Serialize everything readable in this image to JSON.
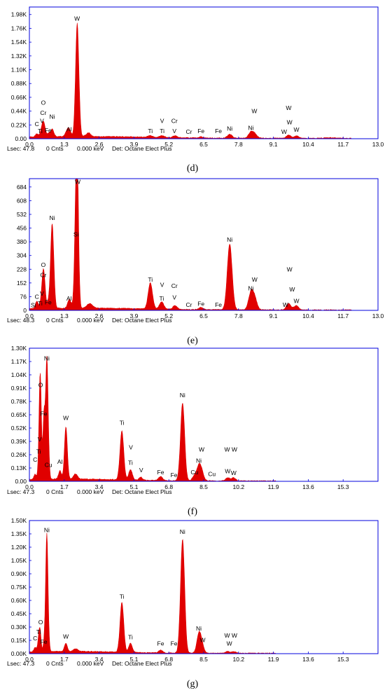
{
  "colors": {
    "spectrum": "#e00000",
    "frame": "#0000dd",
    "text": "#000000"
  },
  "chart_data": [
    {
      "type": "area",
      "panel_label": "(d)",
      "yticks": [
        "0.00",
        "0.22K",
        "0.44K",
        "0.66K",
        "0.88K",
        "1.10K",
        "1.32K",
        "1.54K",
        "1.76K",
        "1.98K"
      ],
      "ylim": [
        0,
        2.1
      ],
      "xticks": [
        "0.0",
        "1.3",
        "2.6",
        "3.9",
        "5.2",
        "6.5",
        "7.8",
        "9.1",
        "10.4",
        "11.7",
        "13.0"
      ],
      "xlim": [
        0,
        13.0
      ],
      "footer": {
        "lsec": "Lsec: 47.8",
        "cnts": "0 Cnts",
        "kev": "0.000 keV",
        "det": "Det: Octane Elect Plus"
      },
      "peaks": [
        {
          "x": 0.28,
          "y": 0.05,
          "w": 0.05
        },
        {
          "x": 0.45,
          "y": 0.1,
          "w": 0.05
        },
        {
          "x": 0.52,
          "y": 0.16,
          "w": 0.05
        },
        {
          "x": 0.57,
          "y": 0.08,
          "w": 0.05
        },
        {
          "x": 0.85,
          "y": 0.12,
          "w": 0.06
        },
        {
          "x": 0.71,
          "y": 0.05,
          "w": 0.05
        },
        {
          "x": 1.49,
          "y": 0.1,
          "w": 0.06
        },
        {
          "x": 1.4,
          "y": 0.08,
          "w": 0.06
        },
        {
          "x": 1.78,
          "y": 1.76,
          "w": 0.06
        },
        {
          "x": 1.85,
          "y": 0.12,
          "w": 0.05
        },
        {
          "x": 2.2,
          "y": 0.06,
          "w": 0.08
        },
        {
          "x": 4.51,
          "y": 0.03,
          "w": 0.08
        },
        {
          "x": 4.95,
          "y": 0.03,
          "w": 0.08
        },
        {
          "x": 5.43,
          "y": 0.03,
          "w": 0.08
        },
        {
          "x": 6.4,
          "y": 0.02,
          "w": 0.08
        },
        {
          "x": 7.47,
          "y": 0.06,
          "w": 0.09
        },
        {
          "x": 8.26,
          "y": 0.09,
          "w": 0.09
        },
        {
          "x": 8.4,
          "y": 0.06,
          "w": 0.09
        },
        {
          "x": 9.67,
          "y": 0.05,
          "w": 0.09
        },
        {
          "x": 9.96,
          "y": 0.04,
          "w": 0.08
        },
        {
          "x": 11.2,
          "y": 0.01,
          "w": 0.2
        }
      ],
      "labels": [
        {
          "text": "C",
          "x": 0.28,
          "y": 0.2
        },
        {
          "text": "Ti",
          "x": 0.4,
          "y": 0.09
        },
        {
          "text": "V",
          "x": 0.47,
          "y": 0.25
        },
        {
          "text": "O",
          "x": 0.52,
          "y": 0.54
        },
        {
          "text": "Cr",
          "x": 0.52,
          "y": 0.38
        },
        {
          "text": "Ni",
          "x": 0.85,
          "y": 0.32
        },
        {
          "text": "Fe",
          "x": 0.7,
          "y": 0.1
        },
        {
          "text": "Al",
          "x": 1.48,
          "y": 0.12
        },
        {
          "text": "W",
          "x": 1.78,
          "y": 1.88
        },
        {
          "text": "Ti",
          "x": 4.51,
          "y": 0.09
        },
        {
          "text": "V",
          "x": 4.95,
          "y": 0.25
        },
        {
          "text": "Ti",
          "x": 4.95,
          "y": 0.09
        },
        {
          "text": "Cr",
          "x": 5.41,
          "y": 0.25
        },
        {
          "text": "V",
          "x": 5.41,
          "y": 0.09
        },
        {
          "text": "Cr",
          "x": 5.95,
          "y": 0.08
        },
        {
          "text": "Fe",
          "x": 6.4,
          "y": 0.09
        },
        {
          "text": "Fe",
          "x": 7.05,
          "y": 0.09
        },
        {
          "text": "Ni",
          "x": 7.47,
          "y": 0.13
        },
        {
          "text": "W",
          "x": 8.39,
          "y": 0.41
        },
        {
          "text": "Ni",
          "x": 8.26,
          "y": 0.14
        },
        {
          "text": "W",
          "x": 9.67,
          "y": 0.46
        },
        {
          "text": "W",
          "x": 9.7,
          "y": 0.23
        },
        {
          "text": "W",
          "x": 9.5,
          "y": 0.08
        },
        {
          "text": "W",
          "x": 9.96,
          "y": 0.11
        }
      ]
    },
    {
      "type": "area",
      "panel_label": "(e)",
      "yticks": [
        "0",
        "76",
        "152",
        "228",
        "304",
        "380",
        "456",
        "532",
        "608",
        "684"
      ],
      "ylim": [
        0,
        730
      ],
      "xticks": [
        "0.0",
        "1.3",
        "2.6",
        "3.9",
        "5.2",
        "6.5",
        "7.8",
        "9.1",
        "10.4",
        "11.7",
        "13.0"
      ],
      "xlim": [
        0,
        13.0
      ],
      "footer": {
        "lsec": "Lsec: 48.3",
        "cnts": "0 Cnts",
        "kev": "0.000 keV",
        "det": "Det: Octane Elect Plus"
      },
      "peaks": [
        {
          "x": 0.28,
          "y": 40,
          "w": 0.05
        },
        {
          "x": 0.45,
          "y": 45,
          "w": 0.05
        },
        {
          "x": 0.52,
          "y": 165,
          "w": 0.05
        },
        {
          "x": 0.57,
          "y": 60,
          "w": 0.05
        },
        {
          "x": 0.71,
          "y": 30,
          "w": 0.05
        },
        {
          "x": 0.85,
          "y": 470,
          "w": 0.06
        },
        {
          "x": 1.49,
          "y": 50,
          "w": 0.06
        },
        {
          "x": 1.74,
          "y": 380,
          "w": 0.06
        },
        {
          "x": 1.78,
          "y": 680,
          "w": 0.05
        },
        {
          "x": 2.25,
          "y": 25,
          "w": 0.1
        },
        {
          "x": 4.51,
          "y": 145,
          "w": 0.08
        },
        {
          "x": 4.93,
          "y": 40,
          "w": 0.08
        },
        {
          "x": 5.43,
          "y": 20,
          "w": 0.08
        },
        {
          "x": 6.4,
          "y": 12,
          "w": 0.08
        },
        {
          "x": 7.47,
          "y": 365,
          "w": 0.09
        },
        {
          "x": 8.26,
          "y": 90,
          "w": 0.09
        },
        {
          "x": 8.4,
          "y": 60,
          "w": 0.09
        },
        {
          "x": 9.67,
          "y": 35,
          "w": 0.09
        },
        {
          "x": 9.96,
          "y": 25,
          "w": 0.08
        }
      ],
      "labels": [
        {
          "text": "Si",
          "x": 0.15,
          "y": 18
        },
        {
          "text": "C",
          "x": 0.28,
          "y": 65
        },
        {
          "text": "Ti",
          "x": 0.4,
          "y": 28
        },
        {
          "text": "V",
          "x": 0.47,
          "y": 82
        },
        {
          "text": "O",
          "x": 0.52,
          "y": 240
        },
        {
          "text": "Cr",
          "x": 0.52,
          "y": 185
        },
        {
          "text": "Fe",
          "x": 0.7,
          "y": 33
        },
        {
          "text": "Ni",
          "x": 0.85,
          "y": 500
        },
        {
          "text": "Al",
          "x": 1.48,
          "y": 55
        },
        {
          "text": "W",
          "x": 1.8,
          "y": 700
        },
        {
          "text": "Si",
          "x": 1.74,
          "y": 410
        },
        {
          "text": "Ti",
          "x": 4.51,
          "y": 160
        },
        {
          "text": "V",
          "x": 4.95,
          "y": 130
        },
        {
          "text": "Ti",
          "x": 4.93,
          "y": 55
        },
        {
          "text": "Cr",
          "x": 5.41,
          "y": 125
        },
        {
          "text": "V",
          "x": 5.41,
          "y": 60
        },
        {
          "text": "Cr",
          "x": 5.95,
          "y": 20
        },
        {
          "text": "Fe",
          "x": 6.4,
          "y": 25
        },
        {
          "text": "Fe",
          "x": 7.05,
          "y": 20
        },
        {
          "text": "Ni",
          "x": 7.47,
          "y": 380
        },
        {
          "text": "W",
          "x": 8.4,
          "y": 160
        },
        {
          "text": "Ni",
          "x": 8.26,
          "y": 110
        },
        {
          "text": "W",
          "x": 9.7,
          "y": 215
        },
        {
          "text": "W",
          "x": 9.8,
          "y": 105
        },
        {
          "text": "W",
          "x": 9.55,
          "y": 20
        },
        {
          "text": "W",
          "x": 9.96,
          "y": 40
        }
      ]
    },
    {
      "type": "area",
      "panel_label": "(f)",
      "yticks": [
        "0.00",
        "0.13K",
        "0.26K",
        "0.39K",
        "0.52K",
        "0.65K",
        "0.78K",
        "0.91K",
        "1.04K",
        "1.17K",
        "1.30K"
      ],
      "ylim": [
        0,
        1.3
      ],
      "xticks": [
        "0.0",
        "1.7",
        "3.4",
        "5.1",
        "6.8",
        "8.5",
        "10.2",
        "11.9",
        "13.6",
        "15.3"
      ],
      "xlim": [
        0,
        17.0
      ],
      "footer": {
        "lsec": "Lsec: 47.3",
        "cnts": "0 Cnts",
        "kev": "0.000 keV",
        "det": "Det: Octane Elect Plus"
      },
      "peaks": [
        {
          "x": 0.28,
          "y": 0.05,
          "w": 0.06
        },
        {
          "x": 0.45,
          "y": 0.09,
          "w": 0.05
        },
        {
          "x": 0.52,
          "y": 0.85,
          "w": 0.05
        },
        {
          "x": 0.57,
          "y": 0.25,
          "w": 0.05
        },
        {
          "x": 0.71,
          "y": 0.6,
          "w": 0.05
        },
        {
          "x": 0.85,
          "y": 1.16,
          "w": 0.06
        },
        {
          "x": 0.93,
          "y": 0.1,
          "w": 0.05
        },
        {
          "x": 1.49,
          "y": 0.08,
          "w": 0.07
        },
        {
          "x": 1.78,
          "y": 0.51,
          "w": 0.07
        },
        {
          "x": 2.25,
          "y": 0.05,
          "w": 0.1
        },
        {
          "x": 4.51,
          "y": 0.48,
          "w": 0.09
        },
        {
          "x": 4.93,
          "y": 0.1,
          "w": 0.09
        },
        {
          "x": 5.43,
          "y": 0.03,
          "w": 0.09
        },
        {
          "x": 6.4,
          "y": 0.04,
          "w": 0.1
        },
        {
          "x": 7.47,
          "y": 0.76,
          "w": 0.1
        },
        {
          "x": 8.05,
          "y": 0.05,
          "w": 0.1
        },
        {
          "x": 8.26,
          "y": 0.13,
          "w": 0.1
        },
        {
          "x": 8.4,
          "y": 0.08,
          "w": 0.1
        },
        {
          "x": 9.67,
          "y": 0.03,
          "w": 0.1
        },
        {
          "x": 9.96,
          "y": 0.03,
          "w": 0.1
        }
      ],
      "labels": [
        {
          "text": "C",
          "x": 0.28,
          "y": 0.19
        },
        {
          "text": "Ti",
          "x": 0.45,
          "y": 0.27
        },
        {
          "text": "V",
          "x": 0.5,
          "y": 0.39
        },
        {
          "text": "O",
          "x": 0.55,
          "y": 0.92
        },
        {
          "text": "Fe",
          "x": 0.7,
          "y": 0.64
        },
        {
          "text": "Ni",
          "x": 0.85,
          "y": 1.18
        },
        {
          "text": "Cu",
          "x": 0.93,
          "y": 0.14
        },
        {
          "text": "Al",
          "x": 1.49,
          "y": 0.17
        },
        {
          "text": "W",
          "x": 1.78,
          "y": 0.6
        },
        {
          "text": "Ti",
          "x": 4.51,
          "y": 0.55
        },
        {
          "text": "V",
          "x": 4.95,
          "y": 0.31
        },
        {
          "text": "Ti",
          "x": 4.93,
          "y": 0.16
        },
        {
          "text": "V",
          "x": 5.45,
          "y": 0.09
        },
        {
          "text": "Fe",
          "x": 6.4,
          "y": 0.07
        },
        {
          "text": "Fe",
          "x": 7.05,
          "y": 0.04
        },
        {
          "text": "Ni",
          "x": 7.47,
          "y": 0.82
        },
        {
          "text": "Cu",
          "x": 8.05,
          "y": 0.07
        },
        {
          "text": "W",
          "x": 8.4,
          "y": 0.29
        },
        {
          "text": "Ni",
          "x": 8.26,
          "y": 0.18
        },
        {
          "text": "Cu",
          "x": 8.9,
          "y": 0.05
        },
        {
          "text": "W W",
          "x": 9.82,
          "y": 0.29
        },
        {
          "text": "W",
          "x": 9.67,
          "y": 0.08
        },
        {
          "text": "W",
          "x": 9.96,
          "y": 0.06
        }
      ]
    },
    {
      "type": "area",
      "panel_label": "(g)",
      "yticks": [
        "0.00K",
        "0.15K",
        "0.30K",
        "0.45K",
        "0.60K",
        "0.75K",
        "0.90K",
        "1.05K",
        "1.20K",
        "1.35K",
        "1.50K"
      ],
      "ylim": [
        0,
        1.5
      ],
      "xticks": [
        "0.0",
        "1.7",
        "3.4",
        "5.1",
        "6.8",
        "8.5",
        "10.2",
        "11.9",
        "13.6",
        "15.3"
      ],
      "xlim": [
        0,
        17.0
      ],
      "footer": {
        "lsec": "Lsec: 47.3",
        "cnts": "0 Cnts",
        "kev": "0.000 keV",
        "det": "Det: Octane Elect Plus"
      },
      "peaks": [
        {
          "x": 0.28,
          "y": 0.05,
          "w": 0.06
        },
        {
          "x": 0.45,
          "y": 0.12,
          "w": 0.05
        },
        {
          "x": 0.52,
          "y": 0.22,
          "w": 0.05
        },
        {
          "x": 0.71,
          "y": 0.07,
          "w": 0.05
        },
        {
          "x": 0.85,
          "y": 1.33,
          "w": 0.06
        },
        {
          "x": 1.78,
          "y": 0.09,
          "w": 0.07
        },
        {
          "x": 2.25,
          "y": 0.03,
          "w": 0.1
        },
        {
          "x": 4.51,
          "y": 0.56,
          "w": 0.09
        },
        {
          "x": 4.93,
          "y": 0.1,
          "w": 0.09
        },
        {
          "x": 6.4,
          "y": 0.03,
          "w": 0.1
        },
        {
          "x": 7.47,
          "y": 1.28,
          "w": 0.1
        },
        {
          "x": 8.26,
          "y": 0.2,
          "w": 0.1
        },
        {
          "x": 8.4,
          "y": 0.1,
          "w": 0.1
        },
        {
          "x": 9.67,
          "y": 0.02,
          "w": 0.1
        },
        {
          "x": 9.96,
          "y": 0.02,
          "w": 0.1
        }
      ],
      "labels": [
        {
          "text": "C",
          "x": 0.28,
          "y": 0.15
        },
        {
          "text": "Ti",
          "x": 0.45,
          "y": 0.22
        },
        {
          "text": "O",
          "x": 0.55,
          "y": 0.33
        },
        {
          "text": "Fe",
          "x": 0.7,
          "y": 0.11
        },
        {
          "text": "Ni",
          "x": 0.85,
          "y": 1.37
        },
        {
          "text": "W",
          "x": 1.78,
          "y": 0.17
        },
        {
          "text": "Ti",
          "x": 4.51,
          "y": 0.62
        },
        {
          "text": "Ti",
          "x": 4.93,
          "y": 0.16
        },
        {
          "text": "Fe",
          "x": 6.4,
          "y": 0.09
        },
        {
          "text": "Fe",
          "x": 7.05,
          "y": 0.09
        },
        {
          "text": "Ni",
          "x": 7.47,
          "y": 1.35
        },
        {
          "text": "Ni",
          "x": 8.26,
          "y": 0.26
        },
        {
          "text": "W",
          "x": 8.45,
          "y": 0.13
        },
        {
          "text": "W W",
          "x": 9.82,
          "y": 0.18
        },
        {
          "text": "W",
          "x": 9.75,
          "y": 0.09
        }
      ]
    }
  ]
}
